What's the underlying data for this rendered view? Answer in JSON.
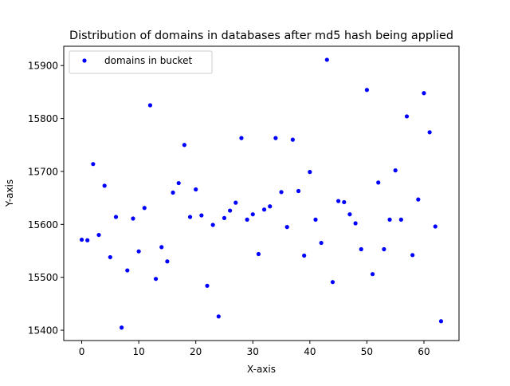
{
  "chart_data": {
    "type": "scatter",
    "title": "Distribution of domains in databases after md5 hash being applied",
    "xlabel": "X-axis",
    "ylabel": "Y-axis",
    "xlim": [
      -3.15,
      66.15
    ],
    "ylim": [
      15380.5,
      15936.5
    ],
    "xticks": [
      0,
      10,
      20,
      30,
      40,
      50,
      60
    ],
    "yticks": [
      15400,
      15500,
      15600,
      15700,
      15800,
      15900
    ],
    "grid": false,
    "legend_position": "upper-left",
    "series": [
      {
        "name": "domains in bucket",
        "color": "#0000ff",
        "marker": "circle",
        "x": [
          0,
          1,
          2,
          3,
          4,
          5,
          6,
          7,
          8,
          9,
          10,
          11,
          12,
          13,
          14,
          15,
          16,
          17,
          18,
          19,
          20,
          21,
          22,
          23,
          24,
          25,
          26,
          27,
          28,
          29,
          30,
          31,
          32,
          33,
          34,
          35,
          36,
          37,
          38,
          39,
          40,
          41,
          42,
          43,
          44,
          45,
          46,
          47,
          48,
          49,
          50,
          51,
          52,
          53,
          54,
          55,
          56,
          57,
          58,
          59,
          60,
          61,
          62,
          63
        ],
        "y": [
          15571,
          15570,
          15714,
          15580,
          15673,
          15538,
          15614,
          15405,
          15513,
          15611,
          15549,
          15631,
          15825,
          15497,
          15557,
          15530,
          15660,
          15678,
          15750,
          15614,
          15666,
          15617,
          15484,
          15599,
          15426,
          15612,
          15626,
          15641,
          15763,
          15609,
          15619,
          15544,
          15628,
          15634,
          15763,
          15661,
          15595,
          15760,
          15663,
          15541,
          15699,
          15609,
          15565,
          15911,
          15491,
          15644,
          15642,
          15619,
          15602,
          15553,
          15854,
          15506,
          15679,
          15553,
          15609,
          15702,
          15609,
          15804,
          15542,
          15647,
          15848,
          15774,
          15596,
          15417
        ]
      }
    ]
  }
}
